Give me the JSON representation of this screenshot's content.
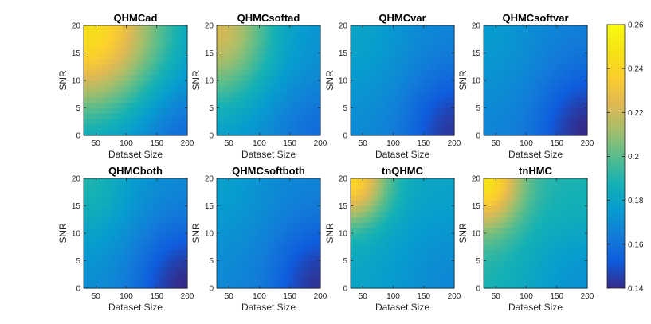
{
  "figure_title": "",
  "chart_data": [
    {
      "type": "heatmap",
      "title": "QHMCad",
      "xlabel": "Dataset Size",
      "ylabel": "SNR",
      "x_ticks": [
        "50",
        "100",
        "150",
        "200"
      ],
      "y_ticks": [
        "0",
        "5",
        "10",
        "15",
        "20"
      ],
      "xlim": [
        30,
        200
      ],
      "ylim": [
        0,
        20
      ],
      "field": {
        "base": 0.17,
        "peak": 0.246,
        "peak_at": [
          30,
          20
        ],
        "radius": [
          130,
          16
        ],
        "low": 0.155,
        "low_at": [
          200,
          0
        ],
        "low_radius": [
          90,
          10
        ]
      }
    },
    {
      "type": "heatmap",
      "title": "QHMCsoftad",
      "xlabel": "Dataset Size",
      "ylabel": "SNR",
      "x_ticks": [
        "50",
        "100",
        "150",
        "200"
      ],
      "y_ticks": [
        "0",
        "5",
        "10",
        "15",
        "20"
      ],
      "xlim": [
        30,
        200
      ],
      "ylim": [
        0,
        20
      ],
      "field": {
        "base": 0.172,
        "peak": 0.222,
        "peak_at": [
          30,
          20
        ],
        "radius": [
          90,
          14
        ],
        "low": 0.158,
        "low_at": [
          200,
          0
        ],
        "low_radius": [
          90,
          10
        ]
      }
    },
    {
      "type": "heatmap",
      "title": "QHMCvar",
      "xlabel": "Dataset Size",
      "ylabel": "SNR",
      "x_ticks": [
        "50",
        "100",
        "150",
        "200"
      ],
      "y_ticks": [
        "0",
        "5",
        "10",
        "15",
        "20"
      ],
      "xlim": [
        30,
        200
      ],
      "ylim": [
        0,
        20
      ],
      "field": {
        "base": 0.168,
        "peak": 0.18,
        "peak_at": [
          30,
          20
        ],
        "radius": [
          90,
          14
        ],
        "low": 0.143,
        "low_at": [
          200,
          0
        ],
        "low_radius": [
          80,
          12
        ]
      }
    },
    {
      "type": "heatmap",
      "title": "QHMCsoftvar",
      "xlabel": "Dataset Size",
      "ylabel": "SNR",
      "x_ticks": [
        "50",
        "100",
        "150",
        "200"
      ],
      "y_ticks": [
        "0",
        "5",
        "10",
        "15",
        "20"
      ],
      "xlim": [
        30,
        200
      ],
      "ylim": [
        0,
        20
      ],
      "field": {
        "base": 0.166,
        "peak": 0.176,
        "peak_at": [
          30,
          20
        ],
        "radius": [
          90,
          14
        ],
        "low": 0.14,
        "low_at": [
          200,
          0
        ],
        "low_radius": [
          80,
          12
        ]
      }
    },
    {
      "type": "heatmap",
      "title": "QHMCboth",
      "xlabel": "Dataset Size",
      "ylabel": "SNR",
      "x_ticks": [
        "50",
        "100",
        "150",
        "200"
      ],
      "y_ticks": [
        "0",
        "5",
        "10",
        "15",
        "20"
      ],
      "xlim": [
        30,
        200
      ],
      "ylim": [
        0,
        20
      ],
      "field": {
        "base": 0.17,
        "peak": 0.19,
        "peak_at": [
          30,
          20
        ],
        "radius": [
          80,
          12
        ],
        "low": 0.14,
        "low_at": [
          200,
          0
        ],
        "low_radius": [
          85,
          12
        ]
      }
    },
    {
      "type": "heatmap",
      "title": "QHMCsoftboth",
      "xlabel": "Dataset Size",
      "ylabel": "SNR",
      "x_ticks": [
        "50",
        "100",
        "150",
        "200"
      ],
      "y_ticks": [
        "0",
        "5",
        "10",
        "15",
        "20"
      ],
      "xlim": [
        30,
        200
      ],
      "ylim": [
        0,
        20
      ],
      "field": {
        "base": 0.168,
        "peak": 0.178,
        "peak_at": [
          30,
          20
        ],
        "radius": [
          80,
          12
        ],
        "low": 0.142,
        "low_at": [
          200,
          0
        ],
        "low_radius": [
          80,
          12
        ]
      }
    },
    {
      "type": "heatmap",
      "title": "tnQHMC",
      "xlabel": "Dataset Size",
      "ylabel": "SNR",
      "x_ticks": [
        "50",
        "100",
        "150",
        "200"
      ],
      "y_ticks": [
        "0",
        "5",
        "10",
        "15",
        "20"
      ],
      "xlim": [
        30,
        200
      ],
      "ylim": [
        0,
        20
      ],
      "field": {
        "base": 0.182,
        "peak": 0.24,
        "peak_at": [
          30,
          20
        ],
        "radius": [
          60,
          8
        ],
        "low": 0.168,
        "low_at": [
          200,
          0
        ],
        "low_radius": [
          110,
          14
        ]
      }
    },
    {
      "type": "heatmap",
      "title": "tnHMC",
      "xlabel": "Dataset Size",
      "ylabel": "SNR",
      "x_ticks": [
        "50",
        "100",
        "150",
        "200"
      ],
      "y_ticks": [
        "0",
        "5",
        "10",
        "15",
        "20"
      ],
      "xlim": [
        30,
        200
      ],
      "ylim": [
        0,
        20
      ],
      "field": {
        "base": 0.19,
        "peak": 0.248,
        "peak_at": [
          30,
          20
        ],
        "radius": [
          60,
          9
        ],
        "low": 0.172,
        "low_at": [
          200,
          0
        ],
        "low_radius": [
          110,
          12
        ]
      }
    }
  ],
  "colorbar": {
    "colormap": "parula",
    "min": 0.14,
    "max": 0.26,
    "ticks": [
      "0.14",
      "0.16",
      "0.18",
      "0.2",
      "0.22",
      "0.24",
      "0.26"
    ]
  }
}
